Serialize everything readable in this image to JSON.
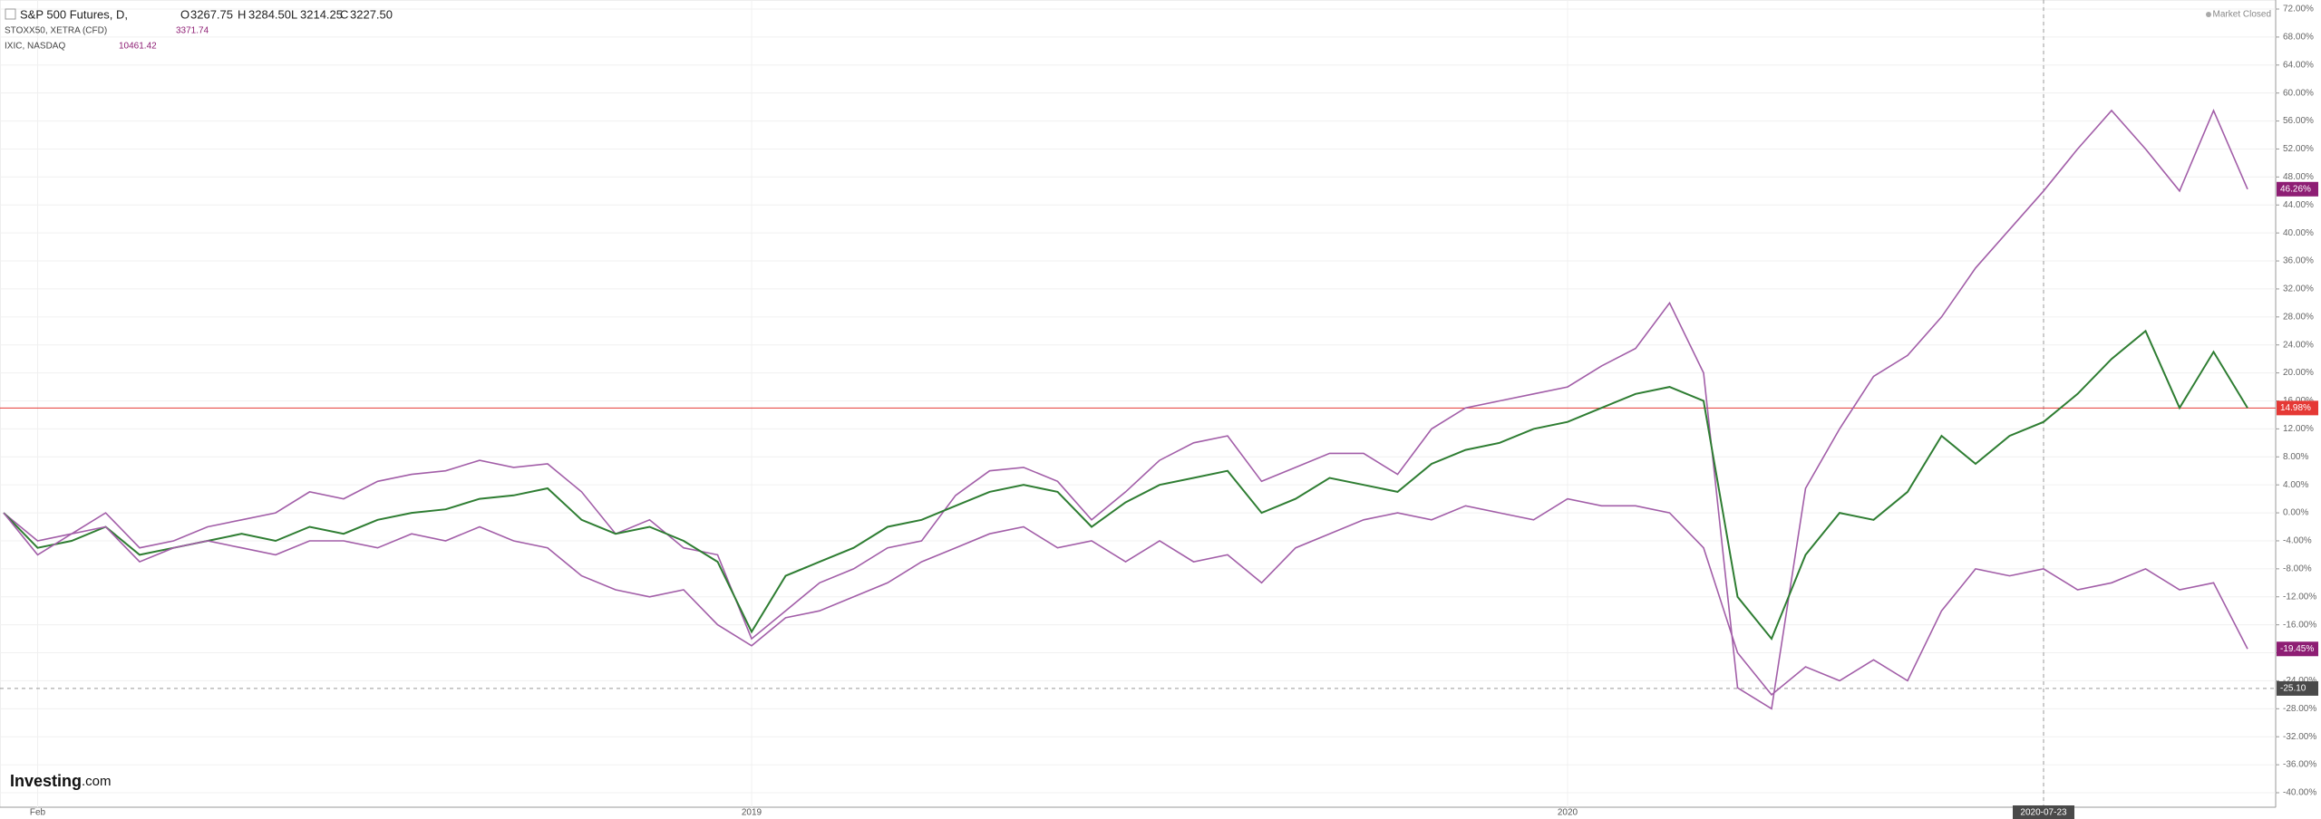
{
  "header": {
    "symbol": "S&P 500 Futures, D,",
    "ohlc": [
      {
        "key": "O",
        "value": "3267.75"
      },
      {
        "key": "H",
        "value": "3284.50"
      },
      {
        "key": "L",
        "value": "3214.25"
      },
      {
        "key": "C",
        "value": "3227.50"
      }
    ],
    "compare": [
      {
        "name": "STOXX50, XETRA (CFD)",
        "last": "3371.74"
      },
      {
        "name": "IXIC, NASDAQ",
        "last": "10461.42"
      }
    ],
    "status": "Market Closed",
    "logo": {
      "brand": "Investing",
      "suffix": ".com"
    }
  },
  "chart_data": {
    "type": "line",
    "categories": [
      null,
      "Feb",
      null,
      null,
      null,
      null,
      null,
      null,
      null,
      null,
      null,
      null,
      null,
      null,
      null,
      null,
      null,
      null,
      null,
      null,
      null,
      null,
      "2019",
      null,
      null,
      null,
      null,
      null,
      null,
      null,
      null,
      null,
      null,
      null,
      null,
      null,
      null,
      null,
      null,
      null,
      null,
      null,
      null,
      null,
      null,
      null,
      "2020",
      null,
      null,
      null,
      null,
      null,
      null,
      null,
      null,
      null,
      null,
      null,
      null,
      null,
      "2020-07-23",
      null,
      null,
      null,
      null,
      null,
      null
    ],
    "series": [
      {
        "name": "IXIC, NASDAQ",
        "color": "#a25ea8",
        "values": [
          0,
          -4,
          -3,
          0,
          -5,
          -4,
          -2,
          -1,
          0,
          3,
          2,
          4.5,
          5.5,
          6,
          7.5,
          6.5,
          7,
          3,
          -3,
          -1,
          -5,
          -6,
          -18,
          -14,
          -10,
          -8,
          -5,
          -4,
          2.5,
          6,
          6.5,
          4.5,
          -1,
          3,
          7.5,
          10,
          11,
          4.5,
          6.5,
          8.5,
          8.5,
          5.5,
          12,
          15,
          16,
          17,
          18,
          21,
          23.5,
          30,
          20,
          -25,
          -28,
          3.5,
          12,
          19.5,
          22.5,
          28,
          35,
          40.5,
          46,
          52,
          57.5,
          52,
          46,
          57.5,
          46.26
        ]
      },
      {
        "name": "S&P 500 Futures, D,",
        "color": "#2e7d32",
        "values": [
          0,
          -5,
          -4,
          -2,
          -6,
          -5,
          -4,
          -3,
          -4,
          -2,
          -3,
          -1,
          0,
          0.5,
          2,
          2.5,
          3.5,
          -1,
          -3,
          -2,
          -4,
          -7,
          -17,
          -9,
          -7,
          -5,
          -2,
          -1,
          1,
          3,
          4,
          3,
          -2,
          1.5,
          4,
          5,
          6,
          0,
          2,
          5,
          4,
          3,
          7,
          9,
          10,
          12,
          13,
          15,
          17,
          18,
          16,
          -12,
          -18,
          -6,
          0,
          -1,
          3,
          11,
          7,
          11,
          13,
          17,
          22,
          26,
          15,
          23,
          14.98
        ]
      },
      {
        "name": "STOXX50, XETRA (CFD)",
        "color": "#a25ea8",
        "values": [
          0,
          -6,
          -3,
          -2,
          -7,
          -5,
          -4,
          -5,
          -6,
          -4,
          -4,
          -5,
          -3,
          -4,
          -2,
          -4,
          -5,
          -9,
          -11,
          -12,
          -11,
          -16,
          -19,
          -15,
          -14,
          -12,
          -10,
          -7,
          -5,
          -3,
          -2,
          -5,
          -4,
          -7,
          -4,
          -7,
          -6,
          -10,
          -5,
          -3,
          -1,
          0,
          -1,
          1,
          0,
          -1,
          2,
          1,
          1,
          0,
          -5,
          -20,
          -26,
          -22,
          -24,
          -21,
          -24,
          -14,
          -8,
          -9,
          -8,
          -11,
          -10,
          -8,
          -11,
          -10,
          -19.45
        ]
      }
    ],
    "price_labels": [
      {
        "value": 46.26,
        "label": "46.26%",
        "color": "#8e1e74"
      },
      {
        "value": 14.98,
        "label": "14.98%",
        "color": "#e53935"
      },
      {
        "value": -19.45,
        "label": "-19.45%",
        "color": "#8e1e74"
      },
      {
        "value": -25.1,
        "label": "-25.10",
        "color": "#4a4a4a"
      }
    ],
    "ylim": [
      -40,
      72
    ],
    "yticks": [
      {
        "value": 72,
        "label": "72.00%"
      },
      {
        "value": 68,
        "label": "68.00%"
      },
      {
        "value": 64,
        "label": "64.00%"
      },
      {
        "value": 60,
        "label": "60.00%"
      },
      {
        "value": 56,
        "label": "56.00%"
      },
      {
        "value": 52,
        "label": "52.00%"
      },
      {
        "value": 48,
        "label": "48.00%"
      },
      {
        "value": 44,
        "label": "44.00%"
      },
      {
        "value": 40,
        "label": "40.00%"
      },
      {
        "value": 36,
        "label": "36.00%"
      },
      {
        "value": 32,
        "label": "32.00%"
      },
      {
        "value": 28,
        "label": "28.00%"
      },
      {
        "value": 24,
        "label": "24.00%"
      },
      {
        "value": 20,
        "label": "20.00%"
      },
      {
        "value": 16,
        "label": "16.00%"
      },
      {
        "value": 12,
        "label": "12.00%"
      },
      {
        "value": 8,
        "label": "8.00%"
      },
      {
        "value": 4,
        "label": "4.00%"
      },
      {
        "value": 0,
        "label": "0.00%"
      },
      {
        "value": -4,
        "label": "-4.00%"
      },
      {
        "value": -8,
        "label": "-8.00%"
      },
      {
        "value": -12,
        "label": "-12.00%"
      },
      {
        "value": -16,
        "label": "-16.00%"
      },
      {
        "value": -20,
        "label": "-20.00%"
      },
      {
        "value": -24,
        "label": "-24.00%"
      },
      {
        "value": -28,
        "label": "-28.00%"
      },
      {
        "value": -32,
        "label": "-32.00%"
      },
      {
        "value": -36,
        "label": "-36.00%"
      },
      {
        "value": -40,
        "label": "-40.00%"
      }
    ],
    "grid": true,
    "crosshair_category": 60
  }
}
